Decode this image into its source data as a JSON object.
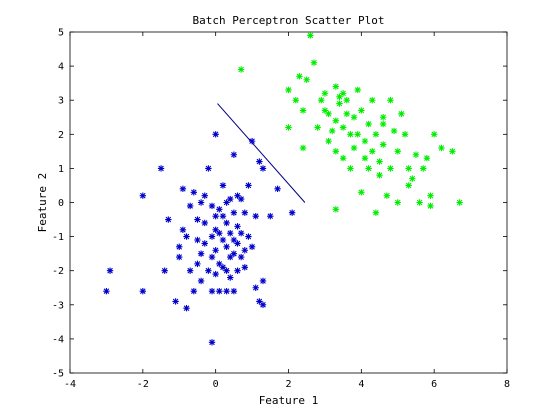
{
  "chart_data": {
    "type": "scatter",
    "title": "Batch Perceptron Scatter Plot",
    "xlabel": "Feature 1",
    "ylabel": "Feature 2",
    "xlim": [
      -4,
      8
    ],
    "ylim": [
      -5,
      5
    ],
    "xticks": [
      -4,
      -2,
      0,
      2,
      4,
      6,
      8
    ],
    "yticks": [
      -5,
      -4,
      -3,
      -2,
      -1,
      0,
      1,
      2,
      3,
      4,
      5
    ],
    "grid": false,
    "marker": "*",
    "series": [
      {
        "color": "#0000cc",
        "points": [
          [
            -3.0,
            -2.6
          ],
          [
            -2.9,
            -2.0
          ],
          [
            -2.0,
            -2.6
          ],
          [
            -2.0,
            0.2
          ],
          [
            -1.5,
            1.0
          ],
          [
            -1.4,
            -2.0
          ],
          [
            -1.3,
            -0.5
          ],
          [
            -1.1,
            -2.9
          ],
          [
            -1.0,
            -1.3
          ],
          [
            -1.0,
            -1.6
          ],
          [
            -0.9,
            0.4
          ],
          [
            -0.9,
            -0.8
          ],
          [
            -0.8,
            -1.0
          ],
          [
            -0.8,
            -3.1
          ],
          [
            -0.7,
            -0.1
          ],
          [
            -0.7,
            -2.0
          ],
          [
            -0.6,
            0.3
          ],
          [
            -0.6,
            -2.6
          ],
          [
            -0.5,
            -0.5
          ],
          [
            -0.5,
            -1.1
          ],
          [
            -0.5,
            -1.8
          ],
          [
            -0.4,
            0.0
          ],
          [
            -0.4,
            -1.5
          ],
          [
            -0.4,
            -2.3
          ],
          [
            -0.3,
            0.2
          ],
          [
            -0.3,
            -0.6
          ],
          [
            -0.3,
            -1.2
          ],
          [
            -0.2,
            -2.0
          ],
          [
            -0.2,
            1.0
          ],
          [
            -0.1,
            -0.1
          ],
          [
            -0.1,
            -1.0
          ],
          [
            -0.1,
            -1.6
          ],
          [
            -0.1,
            -2.6
          ],
          [
            -0.1,
            -4.1
          ],
          [
            0.0,
            -0.4
          ],
          [
            0.0,
            -0.8
          ],
          [
            0.0,
            -1.4
          ],
          [
            0.0,
            -2.1
          ],
          [
            0.0,
            2.0
          ],
          [
            0.1,
            -0.2
          ],
          [
            0.1,
            -0.9
          ],
          [
            0.1,
            -1.8
          ],
          [
            0.1,
            -2.6
          ],
          [
            0.2,
            0.5
          ],
          [
            0.2,
            -0.4
          ],
          [
            0.2,
            -1.1
          ],
          [
            0.2,
            -1.9
          ],
          [
            0.3,
            0.0
          ],
          [
            0.3,
            -0.6
          ],
          [
            0.3,
            -1.3
          ],
          [
            0.3,
            -2.0
          ],
          [
            0.3,
            -2.6
          ],
          [
            0.4,
            0.1
          ],
          [
            0.4,
            -0.9
          ],
          [
            0.4,
            -1.6
          ],
          [
            0.4,
            -2.2
          ],
          [
            0.5,
            1.4
          ],
          [
            0.5,
            -0.3
          ],
          [
            0.5,
            -1.1
          ],
          [
            0.5,
            -1.5
          ],
          [
            0.5,
            -2.6
          ],
          [
            0.6,
            0.2
          ],
          [
            0.6,
            -0.7
          ],
          [
            0.6,
            -1.2
          ],
          [
            0.6,
            -2.0
          ],
          [
            0.7,
            0.1
          ],
          [
            0.7,
            -0.9
          ],
          [
            0.7,
            -1.6
          ],
          [
            0.8,
            -0.3
          ],
          [
            0.8,
            -1.4
          ],
          [
            0.8,
            -1.9
          ],
          [
            0.9,
            0.5
          ],
          [
            1.0,
            1.8
          ],
          [
            1.0,
            -1.3
          ],
          [
            1.1,
            -0.4
          ],
          [
            1.1,
            -2.5
          ],
          [
            1.2,
            1.2
          ],
          [
            1.2,
            -2.9
          ],
          [
            1.3,
            1.0
          ],
          [
            1.3,
            -3.0
          ],
          [
            1.5,
            -0.4
          ],
          [
            1.7,
            0.4
          ],
          [
            2.1,
            -0.3
          ],
          [
            1.3,
            -2.3
          ],
          [
            0.9,
            -1.0
          ]
        ]
      },
      {
        "color": "#00ee00",
        "points": [
          [
            0.7,
            3.9
          ],
          [
            2.0,
            2.2
          ],
          [
            2.0,
            3.3
          ],
          [
            2.2,
            3.0
          ],
          [
            2.3,
            3.7
          ],
          [
            2.4,
            2.7
          ],
          [
            2.4,
            1.6
          ],
          [
            2.5,
            3.6
          ],
          [
            2.6,
            4.9
          ],
          [
            2.7,
            4.1
          ],
          [
            2.8,
            2.2
          ],
          [
            2.9,
            3.0
          ],
          [
            3.0,
            2.7
          ],
          [
            3.1,
            2.6
          ],
          [
            3.1,
            1.8
          ],
          [
            3.2,
            2.1
          ],
          [
            3.3,
            3.4
          ],
          [
            3.3,
            2.4
          ],
          [
            3.3,
            1.5
          ],
          [
            3.3,
            -0.2
          ],
          [
            3.4,
            3.1
          ],
          [
            3.4,
            2.9
          ],
          [
            3.5,
            3.2
          ],
          [
            3.5,
            2.2
          ],
          [
            3.5,
            1.3
          ],
          [
            3.6,
            3.0
          ],
          [
            3.6,
            2.6
          ],
          [
            3.7,
            2.0
          ],
          [
            3.7,
            1.0
          ],
          [
            3.8,
            2.5
          ],
          [
            3.8,
            1.6
          ],
          [
            3.9,
            3.3
          ],
          [
            3.9,
            2.0
          ],
          [
            4.0,
            2.7
          ],
          [
            4.0,
            0.3
          ],
          [
            4.1,
            1.3
          ],
          [
            4.1,
            1.8
          ],
          [
            4.2,
            2.3
          ],
          [
            4.2,
            1.0
          ],
          [
            4.3,
            3.0
          ],
          [
            4.3,
            1.5
          ],
          [
            4.4,
            2.0
          ],
          [
            4.4,
            -0.3
          ],
          [
            4.5,
            1.2
          ],
          [
            4.5,
            0.8
          ],
          [
            4.6,
            2.5
          ],
          [
            4.6,
            1.7
          ],
          [
            4.7,
            0.2
          ],
          [
            4.8,
            3.0
          ],
          [
            4.8,
            1.0
          ],
          [
            4.9,
            2.1
          ],
          [
            5.0,
            1.5
          ],
          [
            5.0,
            0.0
          ],
          [
            5.1,
            2.6
          ],
          [
            5.2,
            2.0
          ],
          [
            5.3,
            1.0
          ],
          [
            5.3,
            0.5
          ],
          [
            5.4,
            0.7
          ],
          [
            5.5,
            1.4
          ],
          [
            5.6,
            0.0
          ],
          [
            5.7,
            1.0
          ],
          [
            5.8,
            1.3
          ],
          [
            5.9,
            0.2
          ],
          [
            6.0,
            2.0
          ],
          [
            6.2,
            1.6
          ],
          [
            6.5,
            1.5
          ],
          [
            6.7,
            0.0
          ],
          [
            5.9,
            -0.1
          ],
          [
            4.6,
            2.3
          ],
          [
            3.0,
            3.2
          ]
        ]
      }
    ],
    "lines": [
      {
        "color": "#000080",
        "x": [
          0.05,
          2.45
        ],
        "y": [
          2.9,
          0.0
        ]
      }
    ]
  }
}
